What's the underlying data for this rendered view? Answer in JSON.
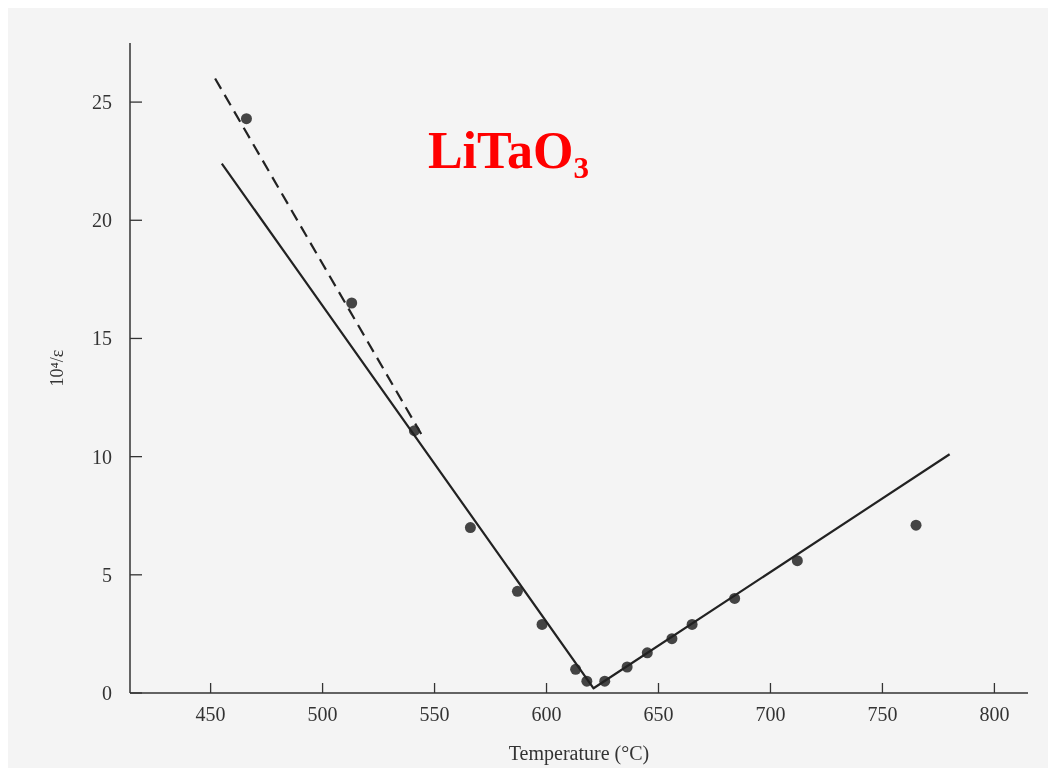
{
  "chart_data": {
    "type": "scatter",
    "title": "LiTaO₃",
    "xlabel": "Temperature (°C)",
    "ylabel": "10⁴/ε",
    "xlim": [
      414,
      815
    ],
    "ylim": [
      0,
      27.5
    ],
    "xticks": [
      450,
      500,
      550,
      600,
      650,
      700,
      750,
      800
    ],
    "yticks": [
      0,
      5,
      10,
      15,
      20,
      25
    ],
    "grid": false,
    "series": [
      {
        "color": "#444444",
        "marker": "circle",
        "x": [
          466,
          513,
          541,
          566,
          587,
          598,
          613,
          618,
          626,
          636,
          645,
          656,
          665,
          684,
          712,
          765
        ],
        "values": [
          24.3,
          16.5,
          11.1,
          7.0,
          4.3,
          2.9,
          1.0,
          0.5,
          0.5,
          1.1,
          1.7,
          2.3,
          2.9,
          4.0,
          5.6,
          7.1
        ]
      },
      {
        "type": "line",
        "color": "#222222",
        "line_style": "solid",
        "x": [
          455,
          621,
          780
        ],
        "values": [
          22.4,
          0.2,
          10.1
        ]
      },
      {
        "type": "line",
        "color": "#222222",
        "line_style": "dashed",
        "x": [
          452,
          545
        ],
        "values": [
          26.0,
          10.8
        ]
      }
    ]
  }
}
